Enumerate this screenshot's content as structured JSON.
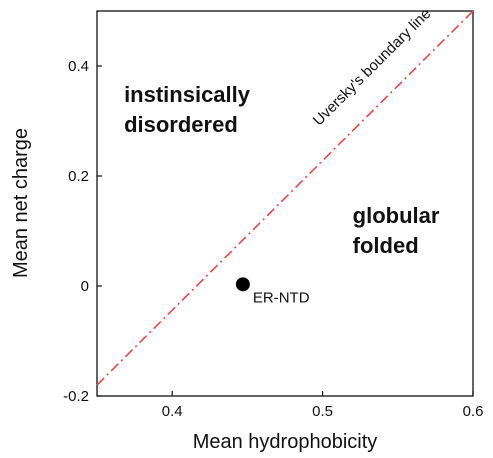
{
  "chart_data": {
    "type": "scatter",
    "title": "",
    "xlabel": "Mean hydrophobicity",
    "ylabel": "Mean net charge",
    "xlim": [
      0.35,
      0.6
    ],
    "ylim": [
      -0.2,
      0.5
    ],
    "x_ticks": [
      0.4,
      0.5,
      0.6
    ],
    "x_tick_labels": [
      "0.4",
      "0.5",
      "0.6"
    ],
    "y_ticks": [
      -0.2,
      0,
      0.2,
      0.4
    ],
    "y_tick_labels": [
      "-0.2",
      "0",
      "0.2",
      "0.4"
    ],
    "grid": false,
    "points": [
      {
        "label": "ER-NTD",
        "x": 0.447,
        "y": 0.003,
        "color": "#000000"
      }
    ],
    "boundary_line": {
      "label": "Uversky's boundary line",
      "color": "#e8454a",
      "style": "dash-dot",
      "from": [
        0.35,
        -0.18
      ],
      "to": [
        0.6,
        0.5
      ]
    },
    "region_labels": [
      {
        "lines": [
          "instinsically",
          "disordered"
        ],
        "x": 0.368,
        "y": 0.335
      },
      {
        "lines": [
          "globular",
          "folded"
        ],
        "x": 0.52,
        "y": 0.115
      }
    ]
  }
}
